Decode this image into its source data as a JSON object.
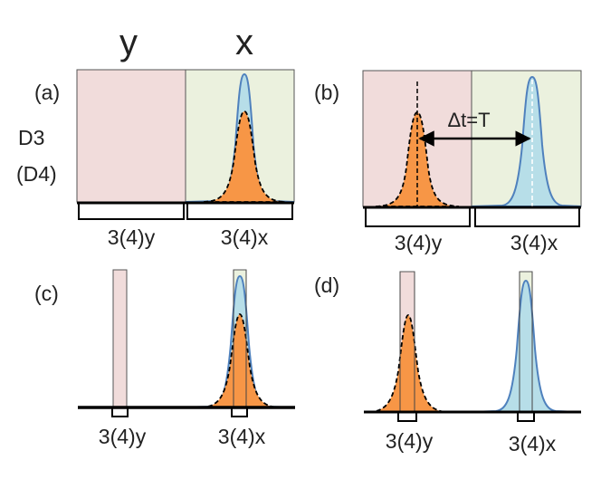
{
  "headers": {
    "y": "y",
    "x": "x"
  },
  "side_labels": {
    "d3": "D3",
    "d4": "(D4)"
  },
  "panels": {
    "a": {
      "label": "(a)",
      "left_slot": "3(4)y",
      "right_slot": "3(4)x"
    },
    "b": {
      "label": "(b)",
      "left_slot": "3(4)y",
      "right_slot": "3(4)x",
      "annotation": "Δt=T"
    },
    "c": {
      "label": "(c)",
      "left_slot": "3(4)y",
      "right_slot": "3(4)x"
    },
    "d": {
      "label": "(d)",
      "left_slot": "3(4)y",
      "right_slot": "3(4)x"
    }
  },
  "colors": {
    "y_region": "#f1dcdb",
    "x_region": "#ebf1de",
    "orange_pulse": "#f79646",
    "blue_pulse": "#b7dee8",
    "blue_outline": "#4f81bd",
    "line": "#000000"
  }
}
